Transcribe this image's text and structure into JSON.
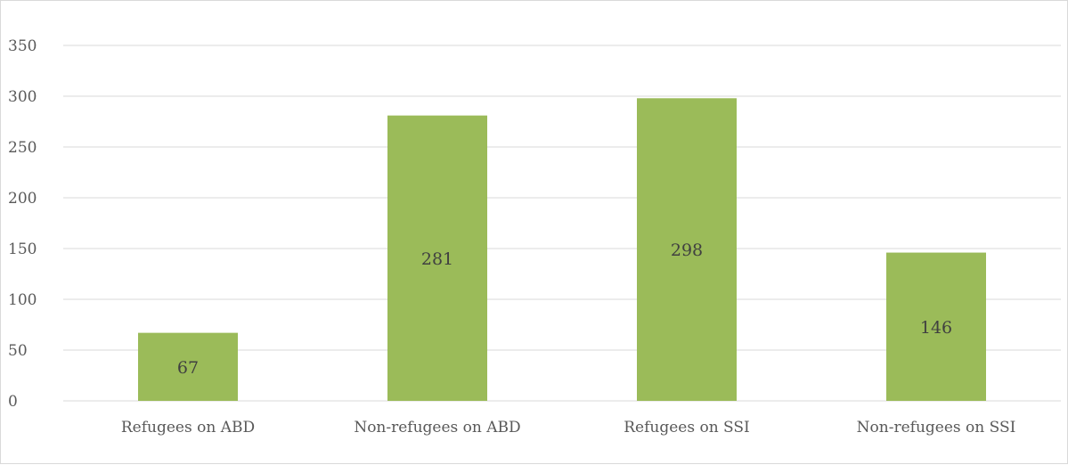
{
  "chart_data": {
    "type": "bar",
    "title": "",
    "xlabel": "",
    "ylabel": "",
    "categories": [
      "Refugees on ABD",
      "Non-refugees on ABD",
      "Refugees on SSI",
      "Non-refugees on SSI"
    ],
    "values": [
      67,
      281,
      298,
      146
    ],
    "data_labels": [
      "67",
      "281",
      "298",
      "146"
    ],
    "ylim": [
      0,
      350
    ],
    "yticks": [
      "0",
      "50",
      "100",
      "150",
      "200",
      "250",
      "300",
      "350"
    ],
    "grid": true,
    "legend": "none",
    "bar_color": "#9bbb59"
  }
}
